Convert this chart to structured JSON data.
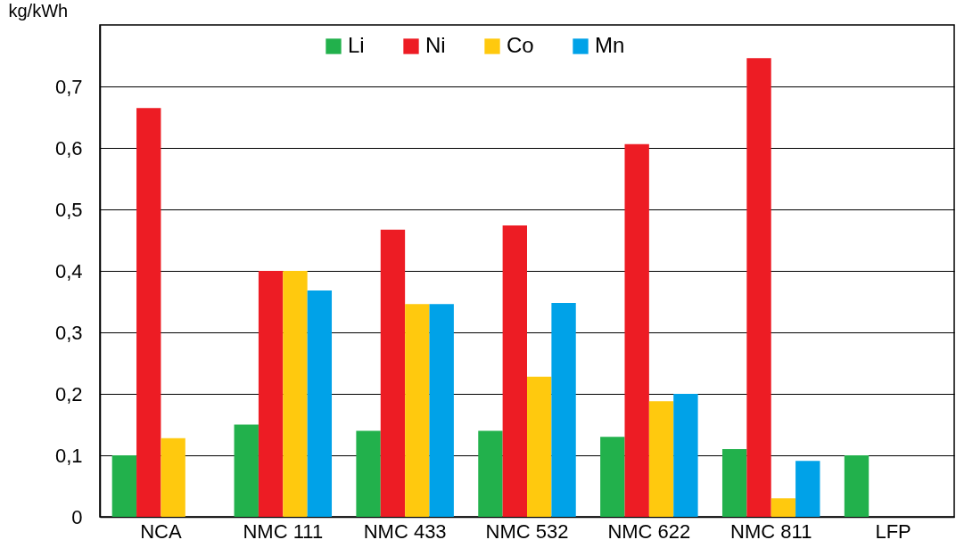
{
  "chart_data": {
    "type": "bar",
    "ylabel": "kg/kWh",
    "categories": [
      "NCA",
      "NMC 111",
      "NMC 433",
      "NMC 532",
      "NMC 622",
      "NMC 811",
      "LFP"
    ],
    "series": [
      {
        "name": "Li",
        "color": "#22b14c",
        "values": [
          0.1,
          0.15,
          0.14,
          0.14,
          0.13,
          0.11,
          0.1
        ]
      },
      {
        "name": "Ni",
        "color": "#ed1c24",
        "values": [
          0.665,
          0.4,
          0.467,
          0.474,
          0.606,
          0.746,
          null
        ]
      },
      {
        "name": "Co",
        "color": "#ffc90e",
        "values": [
          0.128,
          0.4,
          0.346,
          0.228,
          0.188,
          0.03,
          null
        ]
      },
      {
        "name": "Mn",
        "color": "#00a2e8",
        "values": [
          null,
          0.368,
          0.346,
          0.348,
          0.2,
          0.091,
          null
        ]
      }
    ],
    "ylim": [
      0,
      0.8
    ],
    "yticks": [
      0,
      {
        "value": 0.1,
        "label": "0,1"
      },
      {
        "value": 0.2,
        "label": "0,2"
      },
      {
        "value": 0.3,
        "label": "0,3"
      },
      {
        "value": 0.4,
        "label": "0,4"
      },
      {
        "value": 0.5,
        "label": "0,5"
      },
      {
        "value": 0.6,
        "label": "0,6"
      },
      {
        "value": 0.7,
        "label": "0,7"
      }
    ],
    "grid": "y",
    "legend": "top"
  }
}
